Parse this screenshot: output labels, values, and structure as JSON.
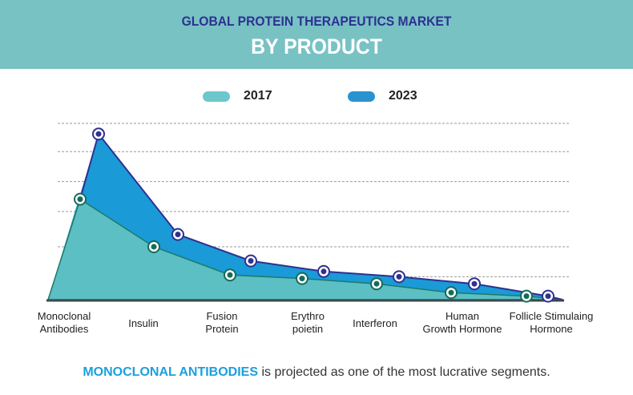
{
  "header": {
    "title_line1": "GLOBAL PROTEIN THERAPEUTICS MARKET",
    "title_line2": "BY PRODUCT"
  },
  "colors": {
    "header_bg": "#78c2c4",
    "title_line1": "#2e3192",
    "series_2017_fill": "#5bbfc3",
    "series_2017_line": "#1d7a6a",
    "series_2017_marker": "#156b5a",
    "series_2023_fill": "#1a9ad6",
    "series_2023_line": "#2e3192",
    "series_2023_marker": "#2e3192",
    "baseline": "#3a4a4a",
    "grid": "#9a9a9a",
    "caption_highlight": "#1ba0de"
  },
  "legend": [
    {
      "label": "2017",
      "color": "#6cc8cb"
    },
    {
      "label": "2023",
      "color": "#2a93cf"
    }
  ],
  "chart_data": {
    "type": "area",
    "title": "GLOBAL PROTEIN THERAPEUTICS MARKET BY PRODUCT",
    "xlabel": "",
    "ylabel": "",
    "categories": [
      "Monoclonal Antibodies",
      "Insulin",
      "Fusion Protein",
      "Erythropoietin",
      "Interferon",
      "Human Growth Hormone",
      "Follicle Stimulaing Hormone"
    ],
    "category_labels": [
      [
        "Monoclonal",
        "Antibodies"
      ],
      [
        "Insulin"
      ],
      [
        "Fusion",
        "Protein"
      ],
      [
        "Erythro",
        "poietin"
      ],
      [
        "Interferon"
      ],
      [
        "Human",
        "Growth Hormone"
      ],
      [
        "Follicle Stimulaing",
        "Hormone"
      ]
    ],
    "series": [
      {
        "name": "2017",
        "values": [
          57,
          30,
          14,
          12,
          9,
          4,
          2
        ]
      },
      {
        "name": "2023",
        "values": [
          94,
          37,
          22,
          16,
          13,
          9,
          2
        ]
      }
    ],
    "units": "relative (no y-axis scale shown)",
    "ylim": [
      0,
      100
    ],
    "gridlines": [
      13,
      30,
      50,
      67,
      84,
      100
    ],
    "grid": true,
    "grid_style": "dashed horizontal",
    "legend_position": "top-center",
    "y_tick_labels_shown": false
  },
  "caption": {
    "highlight": "MONOCLONAL ANTIBODIES",
    "rest": " is projected as one of the most lucrative segments."
  }
}
